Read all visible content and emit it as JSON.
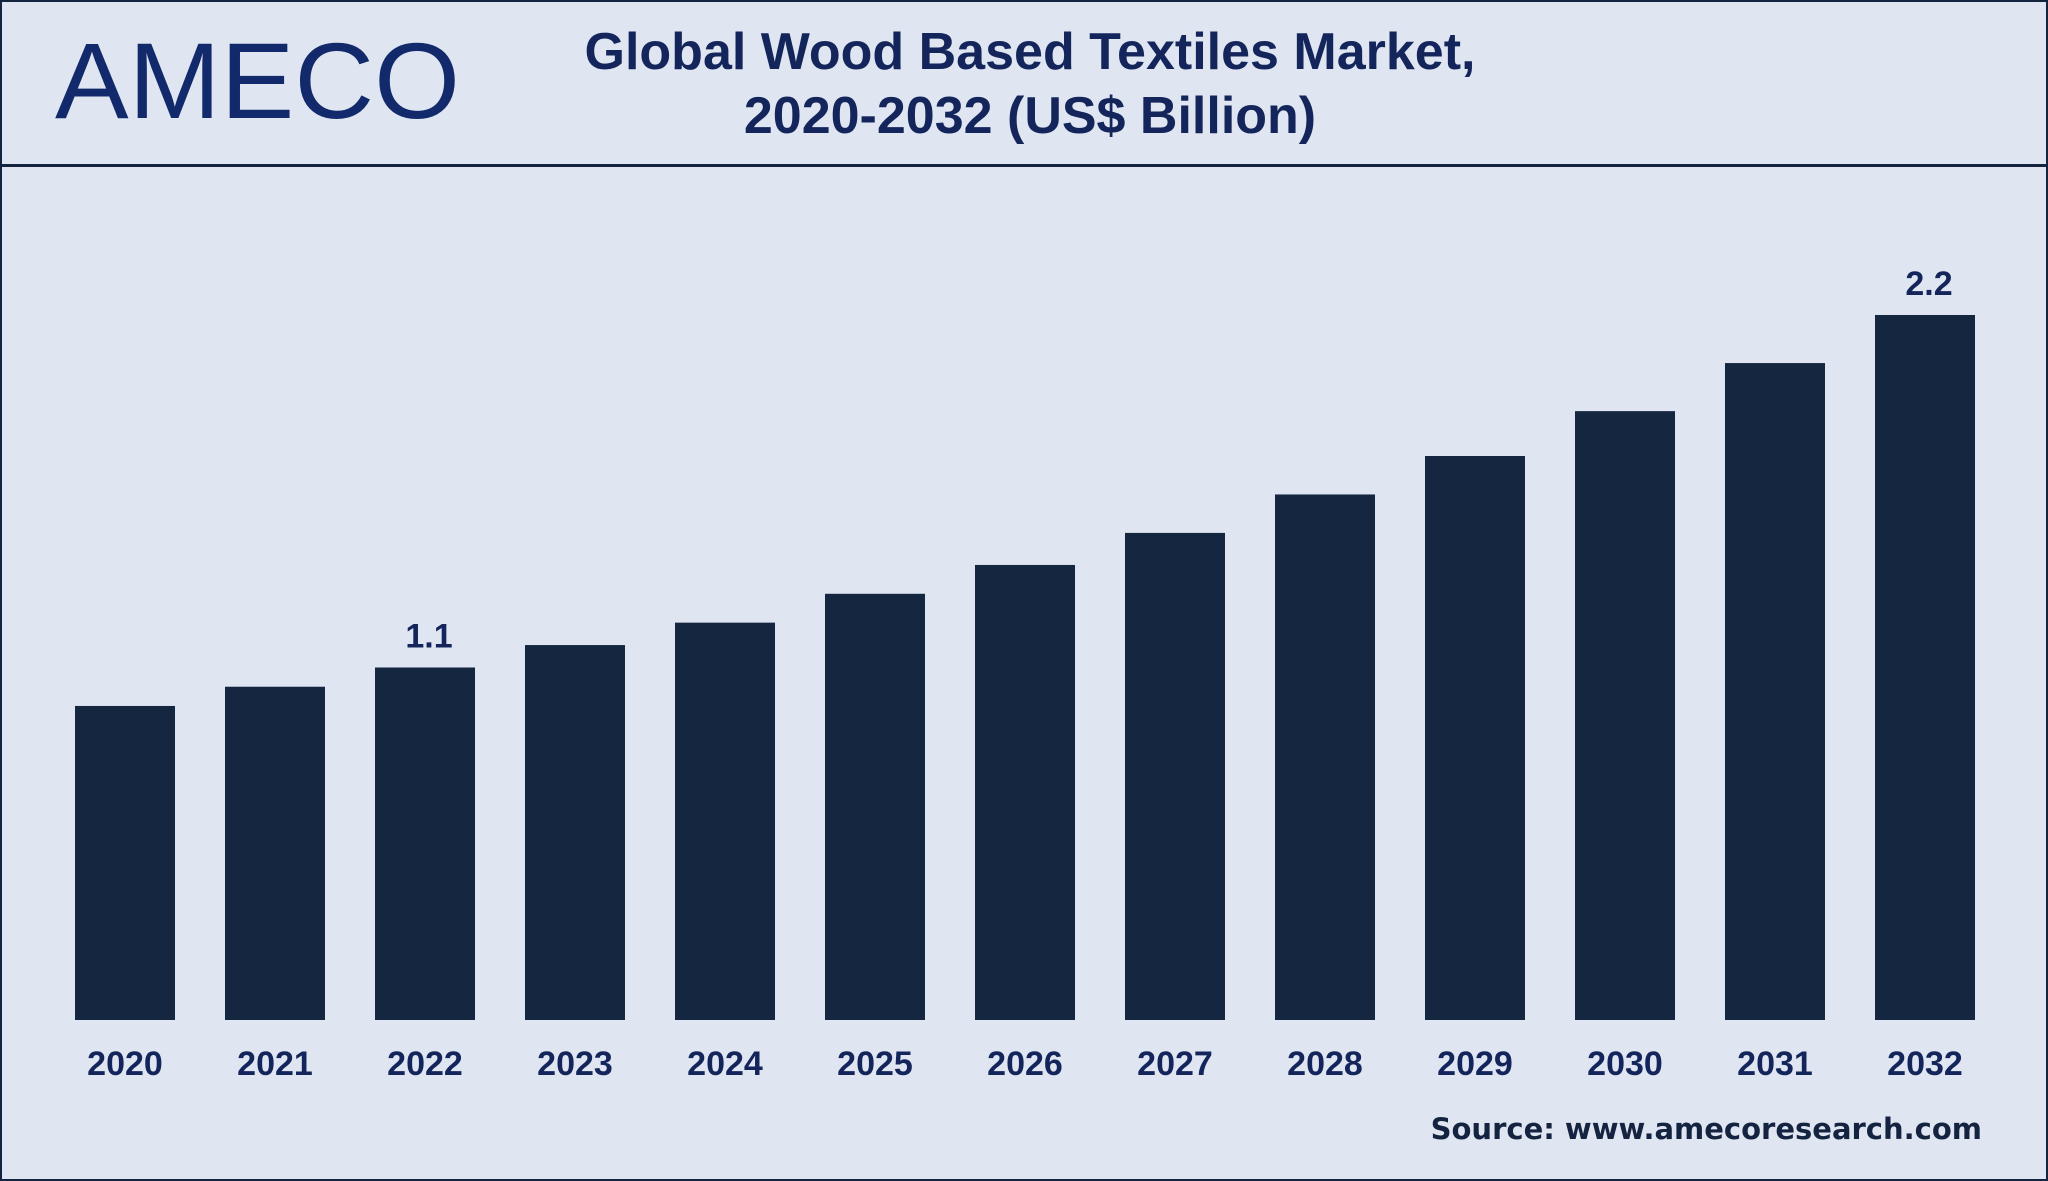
{
  "logo": {
    "text": "AMECO"
  },
  "header": {
    "title_line1": "Global Wood Based Textiles Market,",
    "title_line2": "2020-2032 (US$ Billion)"
  },
  "source": "Source: www.amecoresearch.com",
  "colors": {
    "background": "#dfe6f2",
    "bar": "#152641",
    "text": "#13255a"
  },
  "chart_data": {
    "type": "bar",
    "title": "Global Wood Based Textiles Market, 2020-2032 (US$ Billion)",
    "categories": [
      "2020",
      "2021",
      "2022",
      "2023",
      "2024",
      "2025",
      "2026",
      "2027",
      "2028",
      "2029",
      "2030",
      "2031",
      "2032"
    ],
    "values": [
      0.98,
      1.04,
      1.1,
      1.17,
      1.24,
      1.33,
      1.42,
      1.52,
      1.64,
      1.76,
      1.9,
      2.05,
      2.2
    ],
    "data_labels": {
      "2022": "1.1",
      "2032": "2.2"
    },
    "xlabel": "",
    "ylabel": "",
    "ylim": [
      0,
      2.4
    ],
    "grid": false,
    "legend": "none"
  }
}
